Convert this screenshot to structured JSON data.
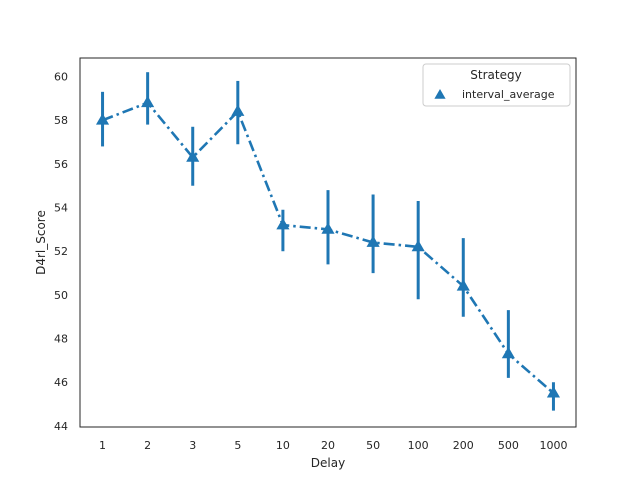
{
  "chart_data": {
    "type": "line",
    "title": "",
    "xlabel": "Delay",
    "ylabel": "D4rl_Score",
    "categories": [
      "1",
      "2",
      "3",
      "5",
      "10",
      "20",
      "50",
      "100",
      "200",
      "500",
      "1000"
    ],
    "ylim": [
      43.95,
      60.85
    ],
    "yticks": [
      "44",
      "46",
      "48",
      "50",
      "52",
      "54",
      "56",
      "58",
      "60"
    ],
    "grid": false,
    "legend": {
      "title": "Strategy",
      "position": "top-right"
    },
    "series": [
      {
        "name": "interval_average",
        "color": "#1f77b4",
        "marker": "triangle",
        "linestyle": "dashdot",
        "values": [
          58.0,
          58.8,
          56.3,
          58.4,
          53.2,
          53.0,
          52.4,
          52.2,
          50.4,
          47.3,
          45.5
        ],
        "err_low": [
          56.8,
          57.8,
          55.0,
          56.9,
          52.0,
          51.4,
          51.0,
          49.8,
          49.0,
          46.2,
          44.7
        ],
        "err_high": [
          59.3,
          60.2,
          57.7,
          59.8,
          53.9,
          54.8,
          54.6,
          54.3,
          52.6,
          49.3,
          46.0
        ]
      }
    ]
  }
}
